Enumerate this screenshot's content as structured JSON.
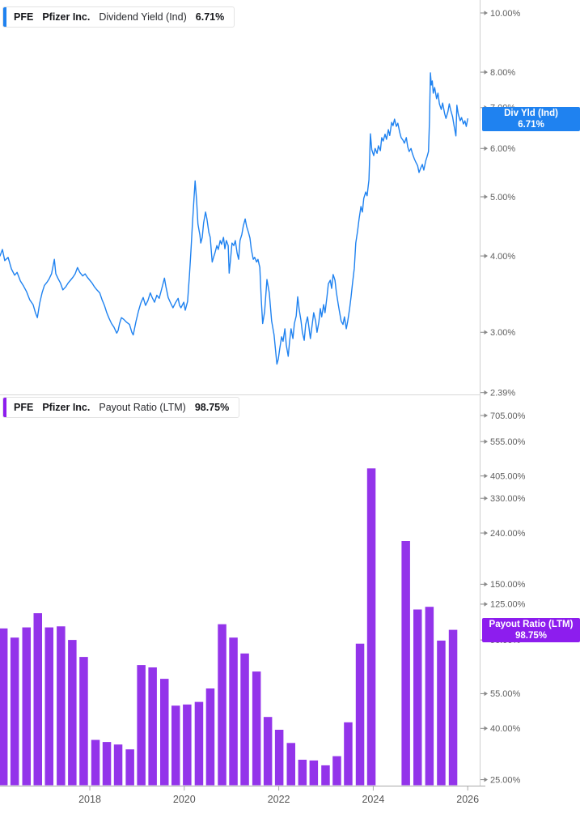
{
  "panels": {
    "top": {
      "header": {
        "ticker": "PFE",
        "company": "Pfizer Inc.",
        "metric": "Dividend Yield (Ind)",
        "value": "6.71%"
      },
      "axis_flag": {
        "line1": "Div Yld (Ind)",
        "line2": "6.71%"
      },
      "accent_color": "#1f82f0"
    },
    "bottom": {
      "header": {
        "ticker": "PFE",
        "company": "Pfizer Inc.",
        "metric": "Payout Ratio (LTM)",
        "value": "98.75%"
      },
      "axis_flag": {
        "line1": "Payout Ratio (LTM)",
        "line2": "98.75%"
      },
      "accent_color": "#8d1dee"
    }
  },
  "x_axis": {
    "years": [
      2018,
      2020,
      2022,
      2024,
      2026
    ]
  },
  "chart_data": [
    {
      "type": "line",
      "title": "PFE Pfizer Inc. Dividend Yield (Ind)",
      "series_name": "Div Yld (Ind)",
      "current_value_pct": 6.71,
      "color": "#1f82f0",
      "x_unit": "year",
      "y_scale": "log",
      "ylim": [
        2.39,
        10.5
      ],
      "grid": false,
      "y_ticks": [
        {
          "label": "10.00%",
          "value": 10
        },
        {
          "label": "8.00%",
          "value": 8
        },
        {
          "label": "7.00%",
          "value": 7
        },
        {
          "label": "6.00%",
          "value": 6
        },
        {
          "label": "5.00%",
          "value": 5
        },
        {
          "label": "4.00%",
          "value": 4
        },
        {
          "label": "3.00%",
          "value": 3
        },
        {
          "label": "2.39%",
          "value": 2.39
        }
      ],
      "points": [
        [
          2016.1,
          4.0
        ],
        [
          2016.15,
          4.1
        ],
        [
          2016.2,
          3.93
        ],
        [
          2016.27,
          3.98
        ],
        [
          2016.34,
          3.81
        ],
        [
          2016.41,
          3.72
        ],
        [
          2016.46,
          3.76
        ],
        [
          2016.53,
          3.64
        ],
        [
          2016.6,
          3.57
        ],
        [
          2016.66,
          3.5
        ],
        [
          2016.73,
          3.39
        ],
        [
          2016.8,
          3.33
        ],
        [
          2016.85,
          3.23
        ],
        [
          2016.89,
          3.17
        ],
        [
          2016.94,
          3.35
        ],
        [
          2016.99,
          3.48
        ],
        [
          2017.04,
          3.58
        ],
        [
          2017.09,
          3.62
        ],
        [
          2017.14,
          3.67
        ],
        [
          2017.19,
          3.74
        ],
        [
          2017.25,
          3.95
        ],
        [
          2017.28,
          3.74
        ],
        [
          2017.33,
          3.67
        ],
        [
          2017.38,
          3.61
        ],
        [
          2017.43,
          3.52
        ],
        [
          2017.49,
          3.56
        ],
        [
          2017.54,
          3.61
        ],
        [
          2017.59,
          3.65
        ],
        [
          2017.64,
          3.69
        ],
        [
          2017.69,
          3.74
        ],
        [
          2017.74,
          3.83
        ],
        [
          2017.79,
          3.76
        ],
        [
          2017.85,
          3.71
        ],
        [
          2017.9,
          3.74
        ],
        [
          2017.95,
          3.69
        ],
        [
          2018.0,
          3.65
        ],
        [
          2018.05,
          3.61
        ],
        [
          2018.1,
          3.56
        ],
        [
          2018.15,
          3.52
        ],
        [
          2018.21,
          3.48
        ],
        [
          2018.26,
          3.39
        ],
        [
          2018.31,
          3.32
        ],
        [
          2018.36,
          3.23
        ],
        [
          2018.41,
          3.16
        ],
        [
          2018.46,
          3.1
        ],
        [
          2018.51,
          3.06
        ],
        [
          2018.57,
          2.99
        ],
        [
          2018.6,
          3.02
        ],
        [
          2018.63,
          3.1
        ],
        [
          2018.67,
          3.17
        ],
        [
          2018.72,
          3.15
        ],
        [
          2018.77,
          3.12
        ],
        [
          2018.84,
          3.09
        ],
        [
          2018.89,
          3.0
        ],
        [
          2018.92,
          2.97
        ],
        [
          2018.98,
          3.13
        ],
        [
          2019.03,
          3.25
        ],
        [
          2019.08,
          3.35
        ],
        [
          2019.13,
          3.42
        ],
        [
          2019.18,
          3.32
        ],
        [
          2019.23,
          3.38
        ],
        [
          2019.28,
          3.48
        ],
        [
          2019.32,
          3.42
        ],
        [
          2019.37,
          3.36
        ],
        [
          2019.42,
          3.45
        ],
        [
          2019.47,
          3.41
        ],
        [
          2019.52,
          3.53
        ],
        [
          2019.58,
          3.68
        ],
        [
          2019.61,
          3.57
        ],
        [
          2019.66,
          3.42
        ],
        [
          2019.71,
          3.35
        ],
        [
          2019.76,
          3.29
        ],
        [
          2019.82,
          3.36
        ],
        [
          2019.87,
          3.41
        ],
        [
          2019.9,
          3.32
        ],
        [
          2019.93,
          3.29
        ],
        [
          2019.99,
          3.36
        ],
        [
          2020.02,
          3.26
        ],
        [
          2020.07,
          3.37
        ],
        [
          2020.11,
          3.72
        ],
        [
          2020.14,
          4.07
        ],
        [
          2020.17,
          4.47
        ],
        [
          2020.21,
          5.04
        ],
        [
          2020.23,
          5.31
        ],
        [
          2020.26,
          4.94
        ],
        [
          2020.29,
          4.51
        ],
        [
          2020.33,
          4.33
        ],
        [
          2020.35,
          4.2
        ],
        [
          2020.38,
          4.29
        ],
        [
          2020.41,
          4.53
        ],
        [
          2020.45,
          4.72
        ],
        [
          2020.48,
          4.6
        ],
        [
          2020.52,
          4.37
        ],
        [
          2020.55,
          4.29
        ],
        [
          2020.59,
          3.91
        ],
        [
          2020.62,
          3.98
        ],
        [
          2020.65,
          4.05
        ],
        [
          2020.69,
          4.16
        ],
        [
          2020.72,
          4.1
        ],
        [
          2020.76,
          4.24
        ],
        [
          2020.79,
          4.18
        ],
        [
          2020.83,
          4.29
        ],
        [
          2020.86,
          4.11
        ],
        [
          2020.89,
          4.24
        ],
        [
          2020.93,
          4.16
        ],
        [
          2020.95,
          3.75
        ],
        [
          2020.98,
          3.95
        ],
        [
          2021.01,
          4.2
        ],
        [
          2021.05,
          4.16
        ],
        [
          2021.08,
          4.24
        ],
        [
          2021.12,
          4.04
        ],
        [
          2021.15,
          3.95
        ],
        [
          2021.18,
          4.24
        ],
        [
          2021.22,
          4.34
        ],
        [
          2021.25,
          4.48
        ],
        [
          2021.29,
          4.6
        ],
        [
          2021.32,
          4.47
        ],
        [
          2021.36,
          4.37
        ],
        [
          2021.39,
          4.28
        ],
        [
          2021.42,
          4.1
        ],
        [
          2021.46,
          3.95
        ],
        [
          2021.49,
          3.98
        ],
        [
          2021.53,
          3.91
        ],
        [
          2021.56,
          3.95
        ],
        [
          2021.6,
          3.83
        ],
        [
          2021.63,
          3.39
        ],
        [
          2021.66,
          3.1
        ],
        [
          2021.7,
          3.24
        ],
        [
          2021.75,
          3.66
        ],
        [
          2021.8,
          3.48
        ],
        [
          2021.85,
          3.13
        ],
        [
          2021.9,
          2.97
        ],
        [
          2021.96,
          2.66
        ],
        [
          2021.99,
          2.71
        ],
        [
          2022.02,
          2.82
        ],
        [
          2022.06,
          2.95
        ],
        [
          2022.09,
          2.9
        ],
        [
          2022.13,
          3.04
        ],
        [
          2022.16,
          2.86
        ],
        [
          2022.2,
          2.74
        ],
        [
          2022.23,
          2.9
        ],
        [
          2022.26,
          3.04
        ],
        [
          2022.3,
          2.93
        ],
        [
          2022.33,
          3.1
        ],
        [
          2022.37,
          3.19
        ],
        [
          2022.4,
          3.43
        ],
        [
          2022.43,
          3.28
        ],
        [
          2022.47,
          3.14
        ],
        [
          2022.5,
          3.0
        ],
        [
          2022.54,
          2.91
        ],
        [
          2022.57,
          3.09
        ],
        [
          2022.61,
          3.18
        ],
        [
          2022.64,
          3.05
        ],
        [
          2022.67,
          2.93
        ],
        [
          2022.71,
          3.1
        ],
        [
          2022.74,
          3.23
        ],
        [
          2022.78,
          3.13
        ],
        [
          2022.81,
          3.0
        ],
        [
          2022.85,
          3.12
        ],
        [
          2022.88,
          3.28
        ],
        [
          2022.91,
          3.18
        ],
        [
          2022.95,
          3.33
        ],
        [
          2022.98,
          3.23
        ],
        [
          2023.02,
          3.43
        ],
        [
          2023.05,
          3.6
        ],
        [
          2023.09,
          3.65
        ],
        [
          2023.12,
          3.54
        ],
        [
          2023.15,
          3.73
        ],
        [
          2023.19,
          3.65
        ],
        [
          2023.22,
          3.49
        ],
        [
          2023.26,
          3.33
        ],
        [
          2023.29,
          3.23
        ],
        [
          2023.32,
          3.13
        ],
        [
          2023.36,
          3.09
        ],
        [
          2023.39,
          3.18
        ],
        [
          2023.43,
          3.04
        ],
        [
          2023.46,
          3.13
        ],
        [
          2023.5,
          3.28
        ],
        [
          2023.53,
          3.43
        ],
        [
          2023.56,
          3.6
        ],
        [
          2023.6,
          3.82
        ],
        [
          2023.63,
          4.2
        ],
        [
          2023.67,
          4.4
        ],
        [
          2023.7,
          4.6
        ],
        [
          2023.74,
          4.82
        ],
        [
          2023.77,
          4.72
        ],
        [
          2023.8,
          4.97
        ],
        [
          2023.84,
          5.09
        ],
        [
          2023.87,
          5.02
        ],
        [
          2023.91,
          5.33
        ],
        [
          2023.94,
          6.34
        ],
        [
          2023.97,
          5.97
        ],
        [
          2024.01,
          5.84
        ],
        [
          2024.04,
          6.0
        ],
        [
          2024.08,
          5.89
        ],
        [
          2024.11,
          6.06
        ],
        [
          2024.15,
          5.95
        ],
        [
          2024.18,
          6.25
        ],
        [
          2024.21,
          6.17
        ],
        [
          2024.25,
          6.33
        ],
        [
          2024.28,
          6.21
        ],
        [
          2024.32,
          6.44
        ],
        [
          2024.35,
          6.3
        ],
        [
          2024.39,
          6.62
        ],
        [
          2024.42,
          6.54
        ],
        [
          2024.45,
          6.7
        ],
        [
          2024.49,
          6.52
        ],
        [
          2024.52,
          6.6
        ],
        [
          2024.56,
          6.38
        ],
        [
          2024.59,
          6.25
        ],
        [
          2024.63,
          6.19
        ],
        [
          2024.66,
          6.12
        ],
        [
          2024.7,
          6.25
        ],
        [
          2024.73,
          6.04
        ],
        [
          2024.76,
          5.93
        ],
        [
          2024.8,
          6.0
        ],
        [
          2024.83,
          5.88
        ],
        [
          2024.87,
          5.77
        ],
        [
          2024.9,
          5.7
        ],
        [
          2024.94,
          5.62
        ],
        [
          2024.97,
          5.48
        ],
        [
          2025.0,
          5.56
        ],
        [
          2025.04,
          5.65
        ],
        [
          2025.07,
          5.53
        ],
        [
          2025.11,
          5.72
        ],
        [
          2025.14,
          5.82
        ],
        [
          2025.17,
          5.93
        ],
        [
          2025.19,
          6.64
        ],
        [
          2025.21,
          7.98
        ],
        [
          2025.23,
          7.62
        ],
        [
          2025.25,
          7.74
        ],
        [
          2025.27,
          7.39
        ],
        [
          2025.3,
          7.55
        ],
        [
          2025.34,
          7.24
        ],
        [
          2025.37,
          7.39
        ],
        [
          2025.4,
          7.1
        ],
        [
          2025.44,
          6.95
        ],
        [
          2025.47,
          7.12
        ],
        [
          2025.51,
          6.85
        ],
        [
          2025.54,
          6.72
        ],
        [
          2025.58,
          6.89
        ],
        [
          2025.61,
          7.1
        ],
        [
          2025.64,
          6.93
        ],
        [
          2025.68,
          6.76
        ],
        [
          2025.71,
          6.54
        ],
        [
          2025.75,
          6.29
        ],
        [
          2025.77,
          7.06
        ],
        [
          2025.8,
          6.83
        ],
        [
          2025.84,
          6.66
        ],
        [
          2025.87,
          6.74
        ],
        [
          2025.91,
          6.58
        ],
        [
          2025.94,
          6.66
        ],
        [
          2025.97,
          6.52
        ],
        [
          2026.0,
          6.71
        ]
      ]
    },
    {
      "type": "bar",
      "title": "PFE Pfizer Inc. Payout Ratio (LTM)",
      "series_name": "Payout Ratio (LTM)",
      "current_value_pct": 98.75,
      "color": "#9334ea",
      "x_unit": "year (quarterly bars)",
      "y_scale": "log",
      "ylim": [
        23.7,
        705
      ],
      "grid": false,
      "y_ticks": [
        {
          "label": "705.00%",
          "value": 705
        },
        {
          "label": "555.00%",
          "value": 555
        },
        {
          "label": "405.00%",
          "value": 405
        },
        {
          "label": "330.00%",
          "value": 330
        },
        {
          "label": "240.00%",
          "value": 240
        },
        {
          "label": "150.00%",
          "value": 150
        },
        {
          "label": "125.00%",
          "value": 125
        },
        {
          "label": "90.00%",
          "value": 90
        },
        {
          "label": "55.00%",
          "value": 55
        },
        {
          "label": "40.00%",
          "value": 40
        },
        {
          "label": "25.00%",
          "value": 25
        }
      ],
      "bars": [
        [
          2016.17,
          100
        ],
        [
          2016.41,
          92
        ],
        [
          2016.66,
          101
        ],
        [
          2016.9,
          115
        ],
        [
          2017.14,
          101
        ],
        [
          2017.39,
          102
        ],
        [
          2017.63,
          90
        ],
        [
          2017.87,
          77
        ],
        [
          2018.12,
          36
        ],
        [
          2018.36,
          35.3
        ],
        [
          2018.6,
          34.5
        ],
        [
          2018.85,
          33
        ],
        [
          2019.09,
          71.5
        ],
        [
          2019.33,
          70
        ],
        [
          2019.58,
          63
        ],
        [
          2019.82,
          49.3
        ],
        [
          2020.06,
          49.8
        ],
        [
          2020.31,
          51
        ],
        [
          2020.55,
          57.7
        ],
        [
          2020.8,
          104
        ],
        [
          2021.04,
          92
        ],
        [
          2021.28,
          79.5
        ],
        [
          2021.53,
          67.4
        ],
        [
          2021.77,
          44.4
        ],
        [
          2022.01,
          39.5
        ],
        [
          2022.26,
          35
        ],
        [
          2022.5,
          30
        ],
        [
          2022.74,
          29.8
        ],
        [
          2022.99,
          28.5
        ],
        [
          2023.23,
          31
        ],
        [
          2023.47,
          42.3
        ],
        [
          2023.72,
          87
        ],
        [
          2023.96,
          434
        ],
        [
          2024.21,
          null
        ],
        [
          2024.45,
          null
        ],
        [
          2024.69,
          223
        ],
        [
          2024.94,
          119
        ],
        [
          2025.19,
          122
        ],
        [
          2025.44,
          89.5
        ],
        [
          2025.69,
          98.75
        ]
      ]
    }
  ]
}
